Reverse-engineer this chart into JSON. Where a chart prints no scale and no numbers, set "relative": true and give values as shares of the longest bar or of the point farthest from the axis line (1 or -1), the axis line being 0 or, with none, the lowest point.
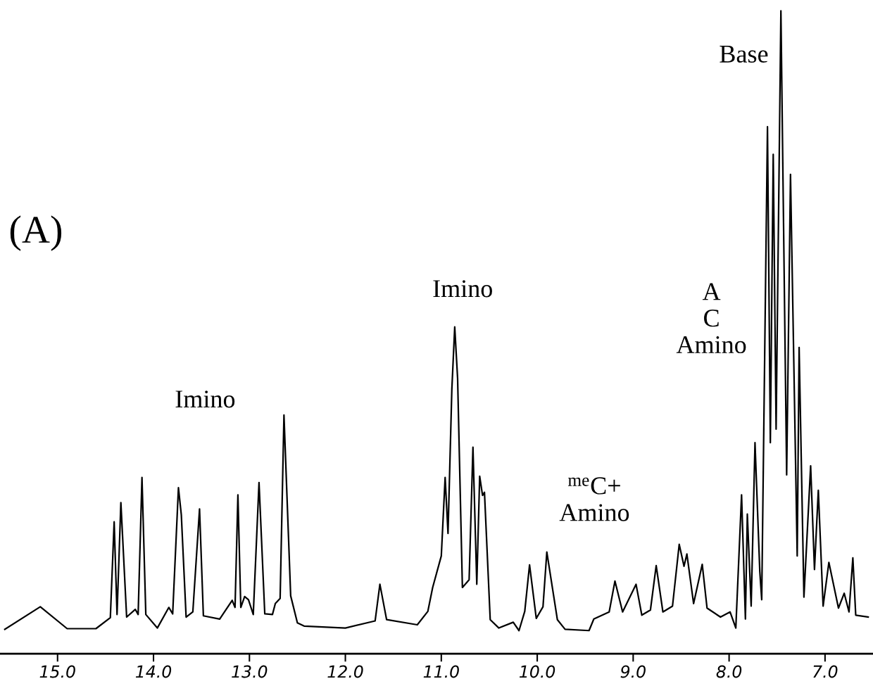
{
  "chart_data": {
    "type": "line",
    "title": "(A)",
    "relative": true,
    "x": [
      15.55,
      15.18,
      14.9,
      14.6,
      14.45,
      14.41,
      14.38,
      14.34,
      14.28,
      14.19,
      14.16,
      14.12,
      14.08,
      13.96,
      13.84,
      13.8,
      13.74,
      13.71,
      13.66,
      13.59,
      13.52,
      13.48,
      13.31,
      13.18,
      13.15,
      13.12,
      13.09,
      13.05,
      13.01,
      12.96,
      12.9,
      12.84,
      12.76,
      12.73,
      12.68,
      12.64,
      12.57,
      12.5,
      12.43,
      12.0,
      11.69,
      11.64,
      11.57,
      11.25,
      11.14,
      11.09,
      11.0,
      10.96,
      10.93,
      10.89,
      10.86,
      10.83,
      10.78,
      10.71,
      10.67,
      10.63,
      10.6,
      10.57,
      10.55,
      10.49,
      10.4,
      10.25,
      10.19,
      10.13,
      10.08,
      10.01,
      9.94,
      9.9,
      9.79,
      9.71,
      9.46,
      9.41,
      9.25,
      9.19,
      9.11,
      8.97,
      8.91,
      8.82,
      8.76,
      8.69,
      8.59,
      8.52,
      8.47,
      8.44,
      8.37,
      8.28,
      8.23,
      8.09,
      7.99,
      7.93,
      7.87,
      7.83,
      7.81,
      7.77,
      7.73,
      7.68,
      7.66,
      7.6,
      7.57,
      7.54,
      7.51,
      7.46,
      7.4,
      7.36,
      7.29,
      7.27,
      7.22,
      7.15,
      7.11,
      7.07,
      7.02,
      6.96,
      6.86,
      6.8,
      6.75,
      6.71,
      6.68,
      6.55
    ],
    "series": [
      {
        "color": "#000000",
        "values": [
          0.038,
          0.073,
          0.039,
          0.039,
          0.056,
          0.205,
          0.061,
          0.235,
          0.057,
          0.069,
          0.061,
          0.274,
          0.061,
          0.04,
          0.072,
          0.062,
          0.258,
          0.216,
          0.057,
          0.065,
          0.225,
          0.059,
          0.054,
          0.083,
          0.072,
          0.247,
          0.072,
          0.089,
          0.084,
          0.061,
          0.266,
          0.062,
          0.061,
          0.078,
          0.086,
          0.371,
          0.09,
          0.048,
          0.043,
          0.04,
          0.051,
          0.108,
          0.053,
          0.045,
          0.066,
          0.103,
          0.152,
          0.274,
          0.187,
          0.411,
          0.508,
          0.428,
          0.103,
          0.115,
          0.321,
          0.108,
          0.276,
          0.246,
          0.251,
          0.053,
          0.04,
          0.049,
          0.036,
          0.066,
          0.138,
          0.055,
          0.073,
          0.158,
          0.053,
          0.038,
          0.036,
          0.054,
          0.065,
          0.113,
          0.065,
          0.108,
          0.06,
          0.068,
          0.137,
          0.065,
          0.074,
          0.17,
          0.136,
          0.155,
          0.078,
          0.139,
          0.071,
          0.057,
          0.065,
          0.04,
          0.247,
          0.054,
          0.217,
          0.074,
          0.328,
          0.128,
          0.084,
          0.819,
          0.328,
          0.776,
          0.349,
          1.0,
          0.278,
          0.745,
          0.152,
          0.476,
          0.088,
          0.292,
          0.131,
          0.254,
          0.074,
          0.142,
          0.071,
          0.094,
          0.065,
          0.149,
          0.06,
          0.057
        ]
      }
    ],
    "xlim": [
      15.6,
      6.5
    ],
    "xticks": [
      {
        "value": 15,
        "label": "15.0"
      },
      {
        "value": 14,
        "label": "14.0"
      },
      {
        "value": 13,
        "label": "13.0"
      },
      {
        "value": 12,
        "label": "12.0"
      },
      {
        "value": 11,
        "label": "11.0"
      },
      {
        "value": 10,
        "label": "10.0"
      },
      {
        "value": 9,
        "label": "9.0"
      },
      {
        "value": 8,
        "label": "8.0"
      },
      {
        "value": 7,
        "label": "7.0"
      }
    ],
    "annotations": [
      "Imino",
      "Imino",
      "$^{me}$C+\nAmino",
      "A\nC\nAmino",
      "Base"
    ],
    "grid": false,
    "legend": false,
    "marker": "none",
    "line_style": "solid"
  }
}
